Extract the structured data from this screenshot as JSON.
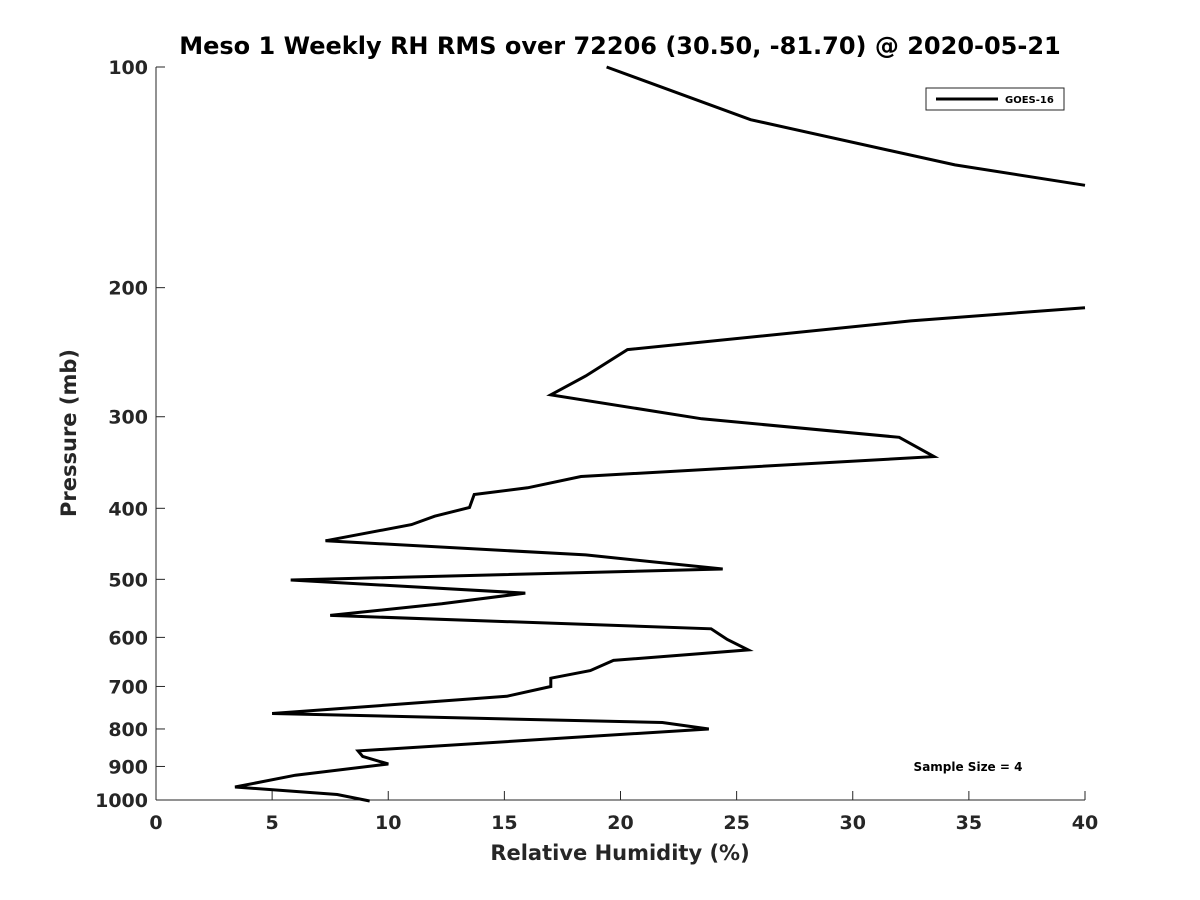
{
  "chart_data": {
    "type": "line",
    "title": "Meso 1 Weekly RH RMS over 72206 (30.50, -81.70) @ 2020-05-21",
    "xlabel": "Relative Humidity (%)",
    "ylabel": "Pressure (mb)",
    "xlim": [
      0,
      40
    ],
    "ylim": [
      100,
      1000
    ],
    "yscale": "log",
    "y_reversed": true,
    "grid": false,
    "xticks": [
      0,
      5,
      10,
      15,
      20,
      25,
      30,
      35,
      40
    ],
    "xtick_labels": [
      "0",
      "5",
      "10",
      "15",
      "20",
      "25",
      "30",
      "35",
      "40"
    ],
    "yticks": [
      100,
      200,
      300,
      400,
      500,
      600,
      700,
      800,
      900,
      1000
    ],
    "ytick_labels": [
      "100",
      "200",
      "300",
      "400",
      "500",
      "600",
      "700",
      "800",
      "900",
      "1000"
    ],
    "legend": {
      "location": "top-right",
      "entries": [
        "GOES-16"
      ]
    },
    "annotation": "Sample Size = 4",
    "series": [
      {
        "name": "GOES-16",
        "color": "#000000",
        "segments": [
          {
            "x": [
              19.4,
              25.6,
              34.4,
              40.0
            ],
            "y": [
              100,
              118,
              136,
              145
            ]
          },
          {
            "x": [
              40.0,
              32.5,
              20.3,
              18.5,
              17.0,
              23.5,
              32.0,
              33.5,
              18.3,
              16.0,
              13.7,
              13.5,
              12.0,
              11.0,
              7.3,
              18.5,
              24.4,
              5.8,
              15.9,
              12.3,
              7.5,
              23.9,
              24.6,
              25.5,
              19.7,
              18.7,
              17.0,
              17.0,
              15.1,
              5.0,
              21.8,
              23.8,
              8.7,
              8.9,
              10.0,
              6.0,
              3.4,
              7.8,
              9.2
            ],
            "y": [
              213,
              222,
              243,
              264,
              280,
              302,
              320,
              340,
              362,
              375,
              383,
              399,
              410,
              421,
              443,
              463,
              484,
              501,
              522,
              540,
              560,
              584,
              604,
              624,
              645,
              666,
              682,
              700,
              722,
              762,
              784,
              800,
              857,
              872,
              893,
              925,
              960,
              983,
              1003
            ]
          }
        ]
      }
    ]
  }
}
